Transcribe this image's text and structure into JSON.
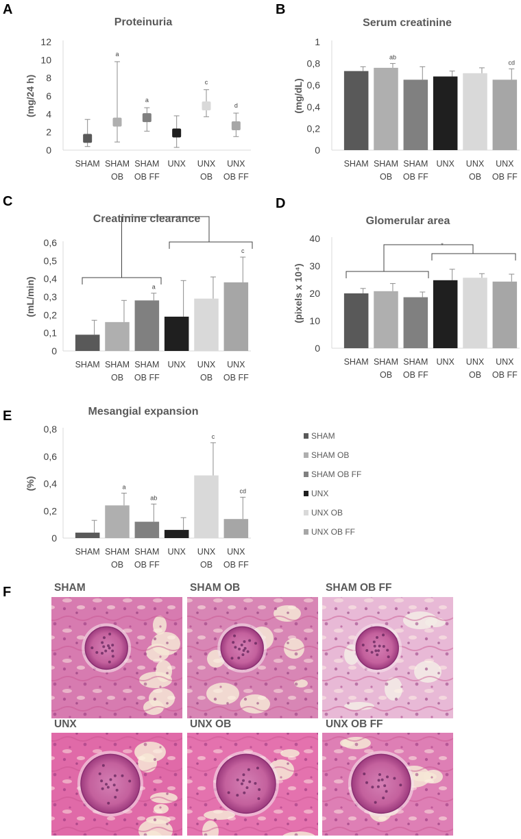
{
  "colors": {
    "SHAM": "#595959",
    "SHAM OB": "#afafaf",
    "SHAM OB FF": "#808080",
    "UNX": "#1f1f1f",
    "UNX OB": "#d9d9d9",
    "UNX OB FF": "#a6a6a6"
  },
  "legend": [
    "SHAM",
    "SHAM OB",
    "SHAM OB FF",
    "UNX",
    "UNX OB",
    "UNX OB FF"
  ],
  "chart_data": [
    {
      "panel": "A",
      "type": "scatter",
      "title": "Proteinuria",
      "ylabel": "(mg/24 h)",
      "ylim": [
        0,
        12
      ],
      "yticks": [
        0,
        2,
        4,
        6,
        8,
        10,
        12
      ],
      "tick_format": "int",
      "categories": [
        [
          "SHAM"
        ],
        [
          "SHAM",
          "OB"
        ],
        [
          "SHAM",
          "OB FF"
        ],
        [
          "UNX"
        ],
        [
          "UNX",
          "OB"
        ],
        [
          "UNX",
          "OB FF"
        ]
      ],
      "values": [
        1.3,
        3.1,
        3.6,
        1.9,
        4.9,
        2.7
      ],
      "err_low": [
        0.4,
        0.9,
        2.1,
        0.3,
        3.7,
        1.5
      ],
      "err_high": [
        3.4,
        9.8,
        4.7,
        3.8,
        6.7,
        4.1
      ],
      "sig": [
        "",
        "a",
        "a",
        "",
        "c",
        "d"
      ]
    },
    {
      "panel": "B",
      "type": "bar",
      "title": "Serum creatinine",
      "ylabel": "(mg/dL)",
      "ylim": [
        0,
        1
      ],
      "yticks": [
        0,
        0.2,
        0.4,
        0.6,
        0.8,
        1
      ],
      "tick_format": "comma1",
      "categories": [
        [
          "SHAM"
        ],
        [
          "SHAM",
          "OB"
        ],
        [
          "SHAM",
          "OB FF"
        ],
        [
          "UNX"
        ],
        [
          "UNX",
          "OB"
        ],
        [
          "UNX",
          "OB FF"
        ]
      ],
      "values": [
        0.73,
        0.76,
        0.65,
        0.68,
        0.71,
        0.65
      ],
      "err": [
        0.04,
        0.04,
        0.12,
        0.05,
        0.05,
        0.1
      ],
      "sig": [
        "",
        "ab",
        "",
        "",
        "",
        "cd"
      ]
    },
    {
      "panel": "C",
      "type": "bar",
      "title": "Creatinine clearance",
      "ylabel": "(mL/min)",
      "ylim": [
        0,
        0.6
      ],
      "yticks": [
        0,
        0.1,
        0.2,
        0.3,
        0.4,
        0.5,
        0.6
      ],
      "tick_format": "comma1",
      "categories": [
        [
          "SHAM"
        ],
        [
          "SHAM",
          "OB"
        ],
        [
          "SHAM",
          "OB FF"
        ],
        [
          "UNX"
        ],
        [
          "UNX",
          "OB"
        ],
        [
          "UNX",
          "OB FF"
        ]
      ],
      "values": [
        0.09,
        0.16,
        0.28,
        0.19,
        0.29,
        0.38
      ],
      "err": [
        0.08,
        0.12,
        0.04,
        0.2,
        0.12,
        0.14
      ],
      "sig": [
        "",
        "",
        "a",
        "",
        "",
        "c"
      ],
      "bracket_label": "*"
    },
    {
      "panel": "D",
      "type": "bar",
      "title": "Glomerular area",
      "ylabel": "(pixels x 10⁴)",
      "ylim": [
        0,
        40
      ],
      "yticks": [
        0,
        10,
        20,
        30,
        40
      ],
      "tick_format": "int",
      "categories": [
        [
          "SHAM"
        ],
        [
          "SHAM",
          "OB"
        ],
        [
          "SHAM",
          "OB FF"
        ],
        [
          "UNX"
        ],
        [
          "UNX",
          "OB"
        ],
        [
          "UNX",
          "OB FF"
        ]
      ],
      "values": [
        20,
        20.8,
        18.6,
        24.8,
        25.7,
        24.3
      ],
      "err": [
        1.8,
        2.8,
        1.9,
        4.0,
        1.5,
        2.7
      ],
      "sig": [
        "",
        "",
        "",
        "",
        "",
        ""
      ],
      "bracket_label": "*"
    },
    {
      "panel": "E",
      "type": "bar",
      "title": "Mesangial expansion",
      "ylabel": "(%)",
      "ylim": [
        0,
        0.8
      ],
      "yticks": [
        0,
        0.2,
        0.4,
        0.6,
        0.8
      ],
      "tick_format": "comma1",
      "categories": [
        [
          "SHAM"
        ],
        [
          "SHAM",
          "OB"
        ],
        [
          "SHAM",
          "OB FF"
        ],
        [
          "UNX"
        ],
        [
          "UNX",
          "OB"
        ],
        [
          "UNX",
          "OB FF"
        ]
      ],
      "values": [
        0.04,
        0.24,
        0.12,
        0.06,
        0.46,
        0.14
      ],
      "err": [
        0.09,
        0.09,
        0.13,
        0.09,
        0.24,
        0.16
      ],
      "sig": [
        "",
        "a",
        "ab",
        "",
        "c",
        "cd"
      ]
    }
  ],
  "micrographs": {
    "panel": "F",
    "labels": [
      "SHAM",
      "SHAM OB",
      "SHAM OB FF",
      "UNX",
      "UNX OB",
      "UNX OB FF"
    ]
  }
}
